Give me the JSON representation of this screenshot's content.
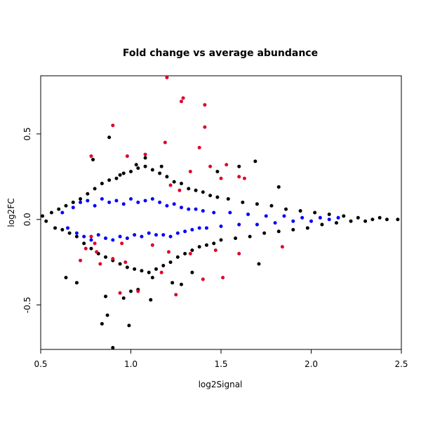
{
  "chart_data": {
    "type": "scatter",
    "title": "Fold change vs average abundance",
    "xlabel": "log2Signal",
    "ylabel": "log2FC",
    "xlim": [
      0.5,
      2.5
    ],
    "ylim": [
      -0.76,
      0.84
    ],
    "x_ticks": [
      0.5,
      1.0,
      1.5,
      2.0,
      2.5
    ],
    "x_tick_labels": [
      "0.5",
      "1.0",
      "1.5",
      "2.0",
      "2.5"
    ],
    "y_ticks": [
      -0.5,
      0.0,
      0.5
    ],
    "y_tick_labels": [
      "-0.5",
      "0.0",
      "0.5"
    ],
    "grid": false,
    "legend": "none",
    "point_style": {
      "radius": 2.5
    },
    "colors": {
      "black": "#000000",
      "blue": "#0000ff",
      "red": "#e0002b"
    },
    "series": [
      {
        "color_key": "black",
        "points": [
          [
            0.51,
            0.02
          ],
          [
            0.53,
            -0.01
          ],
          [
            0.56,
            0.04
          ],
          [
            0.58,
            -0.05
          ],
          [
            0.6,
            0.06
          ],
          [
            0.62,
            -0.06
          ],
          [
            0.64,
            0.08
          ],
          [
            0.66,
            -0.08
          ],
          [
            0.68,
            0.1
          ],
          [
            0.7,
            -0.1
          ],
          [
            0.72,
            0.12
          ],
          [
            0.74,
            -0.14
          ],
          [
            0.76,
            0.15
          ],
          [
            0.78,
            -0.17
          ],
          [
            0.8,
            0.18
          ],
          [
            0.82,
            -0.2
          ],
          [
            0.84,
            0.21
          ],
          [
            0.86,
            -0.22
          ],
          [
            0.88,
            0.23
          ],
          [
            0.9,
            -0.24
          ],
          [
            0.92,
            0.24
          ],
          [
            0.94,
            -0.26
          ],
          [
            0.96,
            0.27
          ],
          [
            0.98,
            -0.28
          ],
          [
            1.0,
            0.28
          ],
          [
            1.02,
            -0.29
          ],
          [
            1.04,
            0.3
          ],
          [
            1.06,
            -0.3
          ],
          [
            1.08,
            0.31
          ],
          [
            1.1,
            -0.31
          ],
          [
            1.12,
            0.29
          ],
          [
            1.14,
            -0.29
          ],
          [
            1.16,
            0.27
          ],
          [
            1.18,
            -0.27
          ],
          [
            1.2,
            0.25
          ],
          [
            1.22,
            -0.25
          ],
          [
            1.24,
            0.22
          ],
          [
            1.26,
            -0.22
          ],
          [
            1.28,
            0.21
          ],
          [
            1.3,
            -0.2
          ],
          [
            1.32,
            0.18
          ],
          [
            1.34,
            -0.18
          ],
          [
            1.36,
            0.17
          ],
          [
            1.38,
            -0.16
          ],
          [
            1.4,
            0.16
          ],
          [
            1.42,
            -0.15
          ],
          [
            1.44,
            0.14
          ],
          [
            1.46,
            -0.14
          ],
          [
            1.48,
            0.13
          ],
          [
            1.5,
            -0.12
          ],
          [
            1.54,
            0.12
          ],
          [
            1.58,
            -0.11
          ],
          [
            1.62,
            0.1
          ],
          [
            1.66,
            -0.1
          ],
          [
            1.7,
            0.09
          ],
          [
            1.74,
            -0.08
          ],
          [
            1.78,
            0.08
          ],
          [
            1.82,
            -0.07
          ],
          [
            1.86,
            0.06
          ],
          [
            1.9,
            -0.06
          ],
          [
            1.94,
            0.05
          ],
          [
            1.98,
            -0.05
          ],
          [
            2.02,
            0.04
          ],
          [
            2.06,
            -0.03
          ],
          [
            2.1,
            0.03
          ],
          [
            2.14,
            -0.02
          ],
          [
            2.18,
            0.02
          ],
          [
            2.22,
            -0.01
          ],
          [
            2.26,
            0.01
          ],
          [
            2.3,
            -0.01
          ],
          [
            2.34,
            0.0
          ],
          [
            2.38,
            0.01
          ],
          [
            2.42,
            0.0
          ],
          [
            2.48,
            0.0
          ],
          [
            0.87,
            -0.56
          ],
          [
            0.84,
            -0.61
          ],
          [
            0.9,
            -0.75
          ],
          [
            0.99,
            -0.62
          ],
          [
            1.08,
            0.36
          ],
          [
            1.11,
            -0.47
          ],
          [
            1.04,
            -0.41
          ],
          [
            0.94,
            0.26
          ],
          [
            1.03,
            0.32
          ],
          [
            1.17,
            0.31
          ],
          [
            0.79,
            0.35
          ],
          [
            0.88,
            0.48
          ],
          [
            1.48,
            0.28
          ],
          [
            1.6,
            0.31
          ],
          [
            1.69,
            0.34
          ],
          [
            1.82,
            0.19
          ],
          [
            1.28,
            -0.38
          ],
          [
            1.23,
            -0.37
          ],
          [
            0.86,
            -0.45
          ],
          [
            0.96,
            -0.46
          ],
          [
            1.0,
            -0.42
          ],
          [
            1.12,
            -0.34
          ],
          [
            1.34,
            -0.31
          ],
          [
            1.71,
            -0.26
          ],
          [
            0.64,
            -0.34
          ],
          [
            0.7,
            -0.37
          ]
        ]
      },
      {
        "color_key": "blue",
        "points": [
          [
            0.62,
            0.04
          ],
          [
            0.65,
            -0.05
          ],
          [
            0.68,
            0.07
          ],
          [
            0.7,
            -0.08
          ],
          [
            0.72,
            0.1
          ],
          [
            0.74,
            -0.1
          ],
          [
            0.76,
            0.11
          ],
          [
            0.78,
            -0.12
          ],
          [
            0.8,
            0.08
          ],
          [
            0.82,
            -0.09
          ],
          [
            0.84,
            0.12
          ],
          [
            0.86,
            -0.11
          ],
          [
            0.88,
            0.1
          ],
          [
            0.9,
            -0.12
          ],
          [
            0.92,
            0.11
          ],
          [
            0.94,
            -0.1
          ],
          [
            0.96,
            0.09
          ],
          [
            0.98,
            -0.11
          ],
          [
            1.0,
            0.12
          ],
          [
            1.02,
            -0.09
          ],
          [
            1.04,
            0.1
          ],
          [
            1.06,
            -0.1
          ],
          [
            1.08,
            0.11
          ],
          [
            1.1,
            -0.08
          ],
          [
            1.12,
            0.12
          ],
          [
            1.14,
            -0.09
          ],
          [
            1.16,
            0.1
          ],
          [
            1.18,
            -0.09
          ],
          [
            1.2,
            0.08
          ],
          [
            1.22,
            -0.1
          ],
          [
            1.24,
            0.09
          ],
          [
            1.26,
            -0.08
          ],
          [
            1.28,
            0.07
          ],
          [
            1.3,
            -0.07
          ],
          [
            1.32,
            0.06
          ],
          [
            1.34,
            -0.06
          ],
          [
            1.36,
            0.06
          ],
          [
            1.38,
            -0.05
          ],
          [
            1.4,
            0.05
          ],
          [
            1.42,
            -0.05
          ],
          [
            1.46,
            0.04
          ],
          [
            1.5,
            -0.04
          ],
          [
            1.55,
            0.04
          ],
          [
            1.6,
            -0.03
          ],
          [
            1.65,
            0.03
          ],
          [
            1.7,
            -0.03
          ],
          [
            1.75,
            0.02
          ],
          [
            1.8,
            -0.02
          ],
          [
            1.85,
            0.02
          ],
          [
            1.9,
            -0.01
          ],
          [
            1.95,
            0.01
          ],
          [
            2.0,
            -0.01
          ],
          [
            2.05,
            0.01
          ],
          [
            2.1,
            0.0
          ],
          [
            2.15,
            0.01
          ]
        ]
      },
      {
        "color_key": "red",
        "points": [
          [
            1.2,
            0.83
          ],
          [
            1.29,
            0.71
          ],
          [
            1.28,
            0.69
          ],
          [
            1.41,
            0.67
          ],
          [
            1.41,
            0.54
          ],
          [
            0.9,
            0.55
          ],
          [
            1.19,
            0.45
          ],
          [
            1.38,
            0.42
          ],
          [
            0.78,
            0.37
          ],
          [
            0.98,
            0.37
          ],
          [
            1.08,
            0.38
          ],
          [
            1.33,
            0.28
          ],
          [
            1.44,
            0.31
          ],
          [
            1.53,
            0.32
          ],
          [
            1.63,
            0.24
          ],
          [
            1.22,
            0.2
          ],
          [
            1.27,
            0.17
          ],
          [
            1.12,
            -0.15
          ],
          [
            1.21,
            -0.19
          ],
          [
            1.33,
            -0.2
          ],
          [
            1.47,
            -0.18
          ],
          [
            1.6,
            -0.2
          ],
          [
            1.84,
            -0.16
          ],
          [
            0.72,
            -0.24
          ],
          [
            0.83,
            -0.26
          ],
          [
            0.9,
            -0.23
          ],
          [
            0.97,
            -0.25
          ],
          [
            0.81,
            -0.19
          ],
          [
            0.75,
            -0.17
          ],
          [
            0.95,
            -0.14
          ],
          [
            1.17,
            -0.31
          ],
          [
            1.51,
            -0.34
          ],
          [
            0.94,
            -0.43
          ],
          [
            1.04,
            -0.42
          ],
          [
            1.25,
            -0.44
          ],
          [
            1.4,
            -0.35
          ],
          [
            0.78,
            -0.1
          ],
          [
            0.8,
            -0.14
          ],
          [
            1.5,
            0.24
          ],
          [
            1.6,
            0.25
          ]
        ]
      }
    ]
  }
}
